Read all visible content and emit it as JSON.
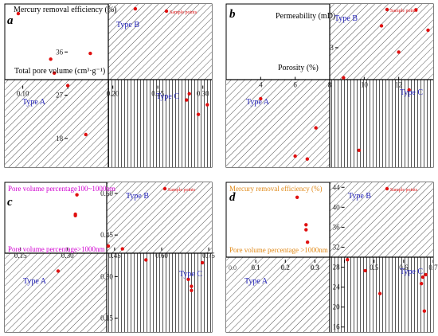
{
  "figure": {
    "legend_label": "Sample points",
    "colors": {
      "frame": "#000000",
      "hatch": "#555555",
      "point": "#e01010",
      "type_label": "#2323b8",
      "magenta_label": "#d000d0",
      "orange_label": "#e08a1a"
    }
  },
  "chart_data": [
    {
      "panel": "a",
      "type": "scatter",
      "x_axis_label": "Total pore volume (cm³·g⁻¹)",
      "y_axis_label": "Mercury removal efficiency (%)",
      "x_axis_label_color": "#000000",
      "y_axis_label_color": "#000000",
      "xlim": [
        0.08,
        0.31
      ],
      "ylim": [
        12,
        46
      ],
      "x_cross": 0.15,
      "y_cross": 29,
      "x_ticks": [
        0.05,
        0.1,
        0.15,
        0.2,
        0.25,
        0.3
      ],
      "x_tick_labels": [
        "",
        "0.10",
        "",
        "0.20",
        "0.25",
        "0.30"
      ],
      "y_ticks": [
        18,
        27,
        36
      ],
      "y_tick_labels": [
        "18",
        "27",
        "36"
      ],
      "quadrant_labels": [
        "Type A",
        "Type B",
        "Type C"
      ],
      "points": [
        {
          "x": 0.095,
          "y": 44.0
        },
        {
          "x": 0.131,
          "y": 34.5
        },
        {
          "x": 0.135,
          "y": 31.6
        },
        {
          "x": 0.15,
          "y": 29.0
        },
        {
          "x": 0.175,
          "y": 35.7
        },
        {
          "x": 0.17,
          "y": 18.8
        },
        {
          "x": 0.225,
          "y": 45.0
        },
        {
          "x": 0.282,
          "y": 26.0
        },
        {
          "x": 0.285,
          "y": 27.3
        },
        {
          "x": 0.295,
          "y": 23.0
        },
        {
          "x": 0.305,
          "y": 25.0
        }
      ]
    },
    {
      "panel": "b",
      "type": "scatter",
      "x_axis_label": "Porosity (%)",
      "y_axis_label": "Permeability (mD)",
      "x_axis_label_color": "#000000",
      "y_axis_label_color": "#000000",
      "xlim": [
        2,
        14
      ],
      "ylim": [
        -1.1,
        4.5
      ],
      "x_cross": 8.5,
      "y_cross": 2.0,
      "x_ticks": [
        4,
        6,
        8,
        10,
        12
      ],
      "x_tick_labels": [
        "4",
        "6",
        "8",
        "10",
        "12"
      ],
      "y_ticks": [
        3
      ],
      "y_tick_labels": [
        "3"
      ],
      "quadrant_labels": [
        "Type A",
        "Type B",
        "Type C"
      ],
      "points": [
        {
          "x": 4.0,
          "y": 1.25
        },
        {
          "x": 6.0,
          "y": -0.72
        },
        {
          "x": 6.7,
          "y": -0.82
        },
        {
          "x": 7.2,
          "y": 0.25
        },
        {
          "x": 8.8,
          "y": 1.97
        },
        {
          "x": 9.7,
          "y": -0.52
        },
        {
          "x": 11.0,
          "y": 3.75
        },
        {
          "x": 12.0,
          "y": 2.85
        },
        {
          "x": 12.6,
          "y": 1.55
        },
        {
          "x": 13.0,
          "y": 4.3
        },
        {
          "x": 13.7,
          "y": 3.6
        }
      ]
    },
    {
      "panel": "c",
      "type": "scatter",
      "x_axis_label": "Pore volume percentage>1000nm",
      "y_axis_label": "Pore volume percentage100~1000nm",
      "x_axis_label_color": "#d000d0",
      "y_axis_label_color": "#d000d0",
      "xlim": [
        0.1,
        0.76
      ],
      "ylim": [
        0.1,
        0.64
      ],
      "x_cross": 0.46,
      "y_cross": 0.405,
      "x_ticks": [
        0.15,
        0.3,
        0.45,
        0.6,
        0.75
      ],
      "x_tick_labels": [
        "0.15",
        "0.30",
        "0.45",
        "0.60",
        "0.75"
      ],
      "y_ticks": [
        0.15,
        0.3,
        0.45,
        0.6
      ],
      "y_tick_labels": [
        "0.15",
        "0.30",
        "0.45",
        "0.60"
      ],
      "quadrant_labels": [
        "Type A",
        "Type B",
        "Type C"
      ],
      "points": [
        {
          "x": 0.27,
          "y": 0.32
        },
        {
          "x": 0.33,
          "y": 0.595
        },
        {
          "x": 0.325,
          "y": 0.525
        },
        {
          "x": 0.325,
          "y": 0.52
        },
        {
          "x": 0.43,
          "y": 0.41
        },
        {
          "x": 0.475,
          "y": 0.4
        },
        {
          "x": 0.55,
          "y": 0.36
        },
        {
          "x": 0.685,
          "y": 0.29
        },
        {
          "x": 0.695,
          "y": 0.265
        },
        {
          "x": 0.695,
          "y": 0.25
        },
        {
          "x": 0.73,
          "y": 0.35
        }
      ]
    },
    {
      "panel": "d",
      "type": "scatter",
      "x_axis_label": "Pore volume percentage >1000nm",
      "y_axis_label": "Mercury removal efficiency (%)",
      "x_axis_label_color": "#e08a1a",
      "y_axis_label_color": "#e08a1a",
      "xlim": [
        0.0,
        0.7
      ],
      "ylim": [
        15,
        45
      ],
      "x_cross": 0.4,
      "y_cross": 29.5,
      "x_ticks": [
        0.1,
        0.2,
        0.3,
        0.4,
        0.5,
        0.6,
        0.7
      ],
      "x_tick_labels": [
        "0.1",
        "0.2",
        "0.3",
        "",
        "0.5",
        "0.6",
        "0.7"
      ],
      "y_ticks": [
        16,
        20,
        24,
        28,
        32,
        36,
        40,
        44
      ],
      "y_tick_labels": [
        "16",
        "20",
        "24",
        "28",
        "32",
        "36",
        "40",
        "44"
      ],
      "x_tick_labels_bottom": [
        {
          "x": 0.0,
          "label": "0.0"
        },
        {
          "x": 0.1,
          "label": "0.1"
        },
        {
          "x": 0.2,
          "label": "0.2"
        },
        {
          "x": 0.3,
          "label": "0.3"
        }
      ],
      "quadrant_labels": [
        "Type A",
        "Type B",
        "Type C"
      ],
      "points": [
        {
          "x": 0.24,
          "y": 42.0
        },
        {
          "x": 0.27,
          "y": 36.5
        },
        {
          "x": 0.27,
          "y": 35.5
        },
        {
          "x": 0.275,
          "y": 33.0
        },
        {
          "x": 0.41,
          "y": 29.5
        },
        {
          "x": 0.47,
          "y": 27.3
        },
        {
          "x": 0.52,
          "y": 22.7
        },
        {
          "x": 0.66,
          "y": 24.7
        },
        {
          "x": 0.665,
          "y": 26.0
        },
        {
          "x": 0.67,
          "y": 19.2
        },
        {
          "x": 0.675,
          "y": 26.5
        }
      ]
    }
  ]
}
